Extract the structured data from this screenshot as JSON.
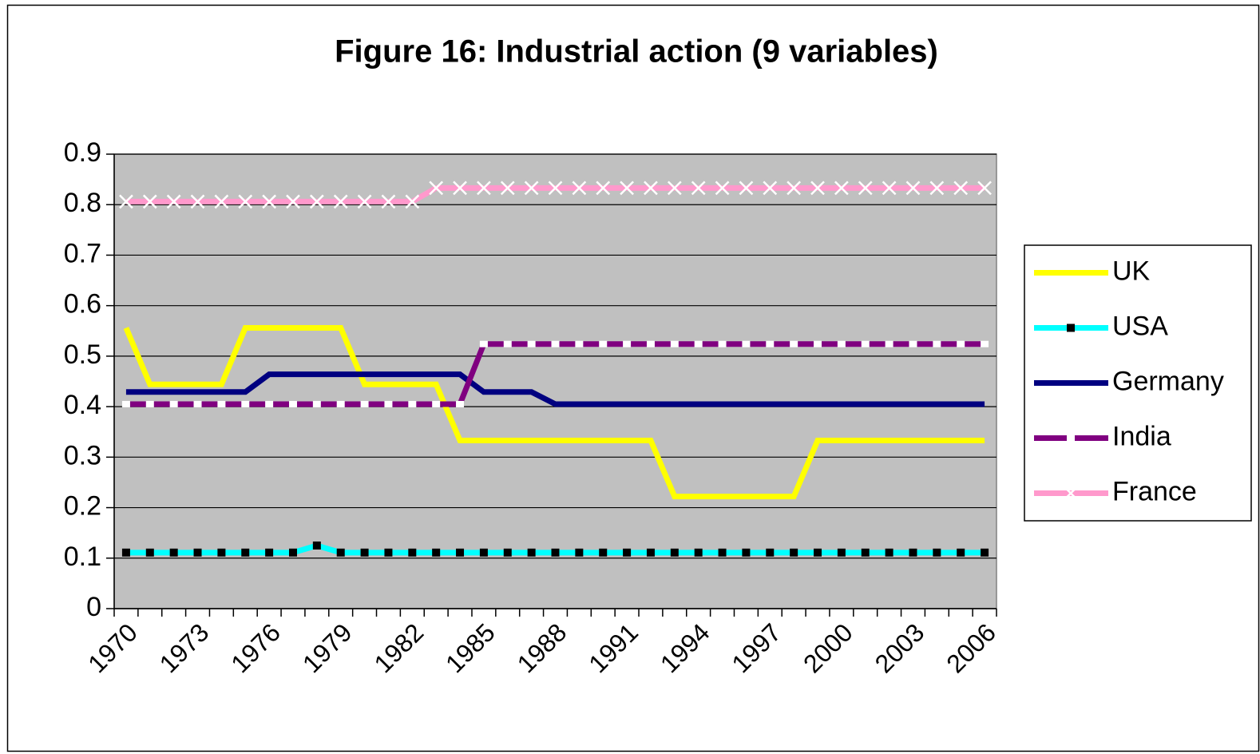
{
  "chart_data": {
    "type": "line",
    "title": "Figure 16: Industrial action (9 variables)",
    "categories": [
      "1970",
      null,
      null,
      "1973",
      null,
      null,
      "1976",
      null,
      null,
      "1979",
      null,
      null,
      "1982",
      null,
      null,
      "1985",
      null,
      null,
      "1988",
      null,
      null,
      "1991",
      null,
      null,
      "1994",
      null,
      null,
      "1997",
      null,
      null,
      "2000",
      null,
      null,
      "2003",
      null,
      null,
      "2006"
    ],
    "series": [
      {
        "name": "UK",
        "color": "#ffff00",
        "marker": "none",
        "values": [
          0.556,
          0.444,
          0.444,
          0.444,
          0.444,
          0.556,
          0.556,
          0.556,
          0.556,
          0.556,
          0.444,
          0.444,
          0.444,
          0.444,
          0.333,
          0.333,
          0.333,
          0.333,
          0.333,
          0.333,
          0.333,
          0.333,
          0.333,
          0.222,
          0.222,
          0.222,
          0.222,
          0.222,
          0.222,
          0.333,
          0.333,
          0.333,
          0.333,
          0.333,
          0.333,
          0.333,
          0.333
        ]
      },
      {
        "name": "USA",
        "color": "#00ffff",
        "marker": "square",
        "values": [
          0.111,
          0.111,
          0.111,
          0.111,
          0.111,
          0.111,
          0.111,
          0.111,
          0.125,
          0.111,
          0.111,
          0.111,
          0.111,
          0.111,
          0.111,
          0.111,
          0.111,
          0.111,
          0.111,
          0.111,
          0.111,
          0.111,
          0.111,
          0.111,
          0.111,
          0.111,
          0.111,
          0.111,
          0.111,
          0.111,
          0.111,
          0.111,
          0.111,
          0.111,
          0.111,
          0.111,
          0.111
        ]
      },
      {
        "name": "Germany",
        "color": "#000080",
        "marker": "none",
        "values": [
          0.429,
          0.429,
          0.429,
          0.429,
          0.429,
          0.429,
          0.464,
          0.464,
          0.464,
          0.464,
          0.464,
          0.464,
          0.464,
          0.464,
          0.464,
          0.429,
          0.429,
          0.429,
          0.405,
          0.405,
          0.405,
          0.405,
          0.405,
          0.405,
          0.405,
          0.405,
          0.405,
          0.405,
          0.405,
          0.405,
          0.405,
          0.405,
          0.405,
          0.405,
          0.405,
          0.405,
          0.405
        ]
      },
      {
        "name": "India",
        "color": "#800080",
        "marker": "dash",
        "values": [
          0.405,
          0.405,
          0.405,
          0.405,
          0.405,
          0.405,
          0.405,
          0.405,
          0.405,
          0.405,
          0.405,
          0.405,
          0.405,
          0.405,
          0.405,
          0.524,
          0.524,
          0.524,
          0.524,
          0.524,
          0.524,
          0.524,
          0.524,
          0.524,
          0.524,
          0.524,
          0.524,
          0.524,
          0.524,
          0.524,
          0.524,
          0.524,
          0.524,
          0.524,
          0.524,
          0.524,
          0.524
        ]
      },
      {
        "name": "France",
        "color": "#ff99cc",
        "marker": "x",
        "values": [
          0.806,
          0.806,
          0.806,
          0.806,
          0.806,
          0.806,
          0.806,
          0.806,
          0.806,
          0.806,
          0.806,
          0.806,
          0.806,
          0.833,
          0.833,
          0.833,
          0.833,
          0.833,
          0.833,
          0.833,
          0.833,
          0.833,
          0.833,
          0.833,
          0.833,
          0.833,
          0.833,
          0.833,
          0.833,
          0.833,
          0.833,
          0.833,
          0.833,
          0.833,
          0.833,
          0.833,
          0.833
        ]
      }
    ],
    "ylim": [
      0,
      0.9
    ],
    "yticks": [
      0,
      0.1,
      0.2,
      0.3,
      0.4,
      0.5,
      0.6,
      0.7,
      0.8,
      0.9
    ],
    "grid": true,
    "plot_background": "#c0c0c0",
    "legend": "right"
  }
}
